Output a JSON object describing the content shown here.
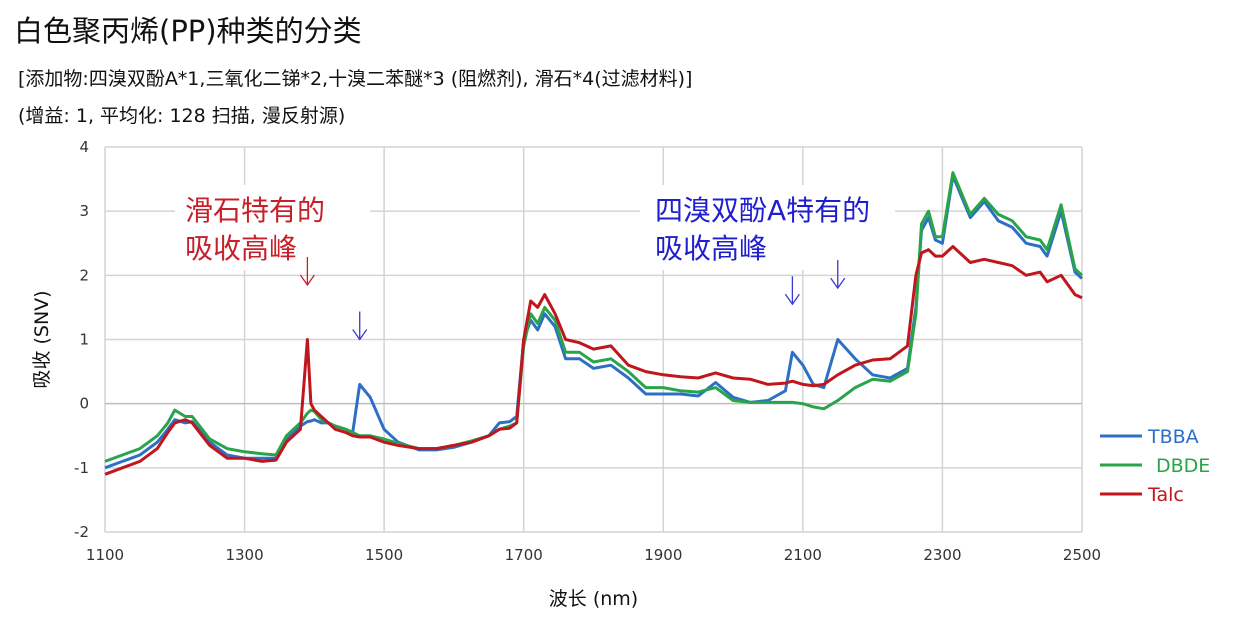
{
  "header": {
    "title": "白色聚丙烯(PP)种类的分类",
    "subtitle1": "[添加物:四溴双酚A*1,三氧化二锑*2,十溴二苯醚*3 (阻燃剂), 滑石*4(过滤材料)]",
    "subtitle2": "(增益: 1,  平均化: 128 扫描, 漫反射源)"
  },
  "chart_data": {
    "type": "line",
    "xlabel": "波长 (nm)",
    "ylabel": "吸收 (SNV)",
    "xlim": [
      1100,
      2500
    ],
    "ylim": [
      -2,
      4
    ],
    "xticks": [
      "1100",
      "1300",
      "1500",
      "1700",
      "1900",
      "2100",
      "2300",
      "2500"
    ],
    "yticks": [
      "-2",
      "-1",
      "0",
      "1",
      "2",
      "3",
      "4"
    ],
    "grid": true,
    "legend_position": "right",
    "x": [
      1100,
      1125,
      1150,
      1175,
      1190,
      1200,
      1215,
      1225,
      1250,
      1275,
      1300,
      1325,
      1345,
      1360,
      1380,
      1390,
      1395,
      1400,
      1410,
      1420,
      1430,
      1445,
      1455,
      1465,
      1480,
      1500,
      1520,
      1550,
      1575,
      1600,
      1625,
      1650,
      1665,
      1680,
      1690,
      1700,
      1710,
      1720,
      1730,
      1745,
      1760,
      1780,
      1800,
      1825,
      1850,
      1875,
      1900,
      1925,
      1950,
      1975,
      2000,
      2025,
      2050,
      2075,
      2085,
      2100,
      2115,
      2130,
      2150,
      2175,
      2200,
      2225,
      2250,
      2262,
      2270,
      2280,
      2290,
      2300,
      2315,
      2340,
      2360,
      2380,
      2400,
      2420,
      2440,
      2450,
      2470,
      2490,
      2500
    ],
    "series": [
      {
        "name": "TBBA",
        "color": "#2e6fc6",
        "values": [
          -1.0,
          -0.9,
          -0.8,
          -0.6,
          -0.4,
          -0.25,
          -0.3,
          -0.28,
          -0.6,
          -0.8,
          -0.85,
          -0.85,
          -0.85,
          -0.55,
          -0.35,
          -0.28,
          -0.27,
          -0.25,
          -0.3,
          -0.3,
          -0.35,
          -0.4,
          -0.45,
          0.3,
          0.1,
          -0.4,
          -0.6,
          -0.72,
          -0.72,
          -0.68,
          -0.6,
          -0.5,
          -0.3,
          -0.28,
          -0.2,
          1.0,
          1.3,
          1.15,
          1.4,
          1.2,
          0.7,
          0.7,
          0.55,
          0.6,
          0.4,
          0.15,
          0.15,
          0.15,
          0.12,
          0.33,
          0.1,
          0.02,
          0.05,
          0.2,
          0.8,
          0.6,
          0.3,
          0.25,
          1.0,
          0.7,
          0.45,
          0.4,
          0.55,
          1.5,
          2.7,
          2.9,
          2.55,
          2.5,
          3.55,
          2.9,
          3.15,
          2.85,
          2.75,
          2.5,
          2.45,
          2.3,
          3.0,
          2.05,
          1.95
        ]
      },
      {
        "name": "DBDE",
        "color": "#2aa44a",
        "values": [
          -0.9,
          -0.8,
          -0.7,
          -0.5,
          -0.3,
          -0.1,
          -0.2,
          -0.2,
          -0.55,
          -0.7,
          -0.75,
          -0.78,
          -0.8,
          -0.5,
          -0.3,
          -0.15,
          -0.1,
          -0.12,
          -0.25,
          -0.3,
          -0.35,
          -0.4,
          -0.45,
          -0.5,
          -0.5,
          -0.55,
          -0.62,
          -0.7,
          -0.7,
          -0.65,
          -0.58,
          -0.5,
          -0.4,
          -0.35,
          -0.3,
          0.9,
          1.4,
          1.25,
          1.5,
          1.3,
          0.8,
          0.8,
          0.65,
          0.7,
          0.5,
          0.25,
          0.25,
          0.2,
          0.18,
          0.25,
          0.05,
          0.02,
          0.02,
          0.02,
          0.02,
          0.0,
          -0.05,
          -0.08,
          0.05,
          0.25,
          0.38,
          0.35,
          0.5,
          1.4,
          2.8,
          3.0,
          2.6,
          2.6,
          3.6,
          2.95,
          3.2,
          2.95,
          2.85,
          2.6,
          2.55,
          2.4,
          3.1,
          2.1,
          2.0
        ]
      },
      {
        "name": "Talc",
        "color": "#c0161e",
        "values": [
          -1.1,
          -1.0,
          -0.9,
          -0.7,
          -0.45,
          -0.3,
          -0.25,
          -0.3,
          -0.65,
          -0.85,
          -0.85,
          -0.9,
          -0.88,
          -0.6,
          -0.4,
          1.0,
          0.0,
          -0.1,
          -0.2,
          -0.3,
          -0.4,
          -0.45,
          -0.5,
          -0.52,
          -0.52,
          -0.6,
          -0.65,
          -0.7,
          -0.7,
          -0.65,
          -0.6,
          -0.5,
          -0.4,
          -0.38,
          -0.3,
          1.0,
          1.6,
          1.5,
          1.7,
          1.4,
          1.0,
          0.95,
          0.85,
          0.9,
          0.6,
          0.5,
          0.45,
          0.42,
          0.4,
          0.48,
          0.4,
          0.38,
          0.3,
          0.32,
          0.35,
          0.3,
          0.28,
          0.3,
          0.45,
          0.6,
          0.68,
          0.7,
          0.9,
          2.0,
          2.35,
          2.4,
          2.3,
          2.3,
          2.45,
          2.2,
          2.25,
          2.2,
          2.15,
          2.0,
          2.05,
          1.9,
          2.0,
          1.7,
          1.65
        ]
      }
    ],
    "annotations": [
      {
        "text1": "滑石特有的",
        "text2": "吸收高峰",
        "color": "#c8202a",
        "arrows": [
          {
            "x": 1390,
            "y": 1.85,
            "color": "#c8202a"
          },
          {
            "x": 1465,
            "y": 1.0,
            "color": "#3a3ad0"
          }
        ]
      },
      {
        "text1": "四溴双酚A特有的",
        "text2": "吸收高峰",
        "color": "#1f1fd0",
        "arrows": [
          {
            "x": 2085,
            "y": 1.55,
            "color": "#3a3ad0"
          },
          {
            "x": 2150,
            "y": 1.8,
            "color": "#3a3ad0"
          }
        ]
      }
    ]
  }
}
